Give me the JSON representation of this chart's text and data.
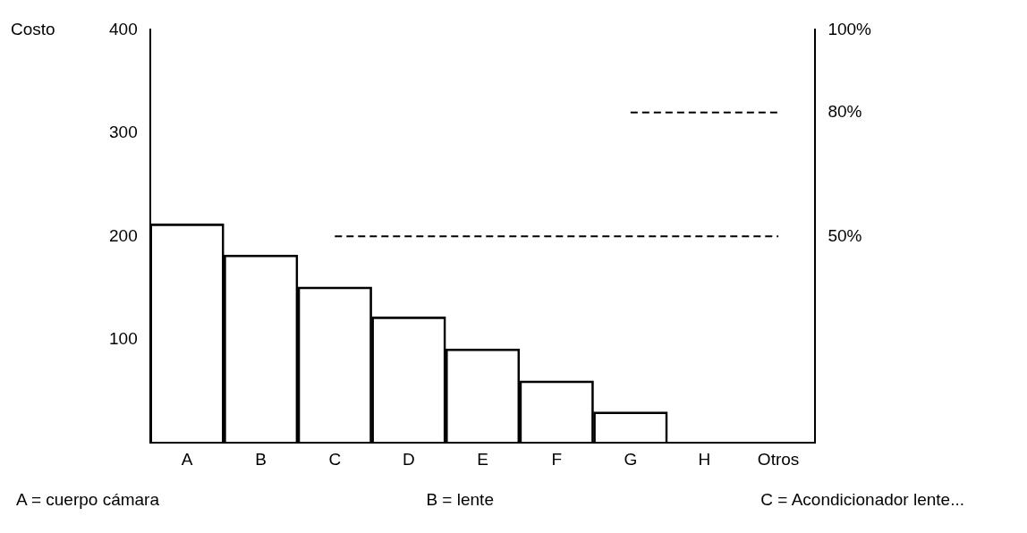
{
  "chart_data": {
    "type": "bar",
    "ylabel": "Costo",
    "categories": [
      "A",
      "B",
      "C",
      "D",
      "E",
      "F",
      "G",
      "H",
      "Otros"
    ],
    "series": [
      {
        "color": "#000000",
        "values": [
          212,
          182,
          151,
          122,
          91,
          60,
          30,
          0,
          0
        ]
      },
      {
        "type": "line",
        "axis": "y2",
        "color": "#000000",
        "line_style": "dashed",
        "values": [
          null,
          null,
          50,
          50,
          50,
          50,
          50,
          50,
          50
        ]
      },
      {
        "type": "line",
        "axis": "y2",
        "color": "#000000",
        "line_style": "dashed",
        "values": [
          null,
          null,
          null,
          null,
          null,
          null,
          80,
          80,
          80
        ]
      }
    ],
    "ylim": [
      0,
      400
    ],
    "yticks": [
      100,
      200,
      300,
      400
    ],
    "y2lim": [
      0,
      100
    ],
    "y2ticks": [
      {
        "value": 50,
        "label": "50%"
      },
      {
        "value": 80,
        "label": "80%"
      },
      {
        "value": 100,
        "label": "100%"
      }
    ],
    "grid": false,
    "legend": false,
    "annotations": [
      "A = cuerpo cámara",
      "B = lente",
      "C = Acondicionador lente..."
    ]
  }
}
